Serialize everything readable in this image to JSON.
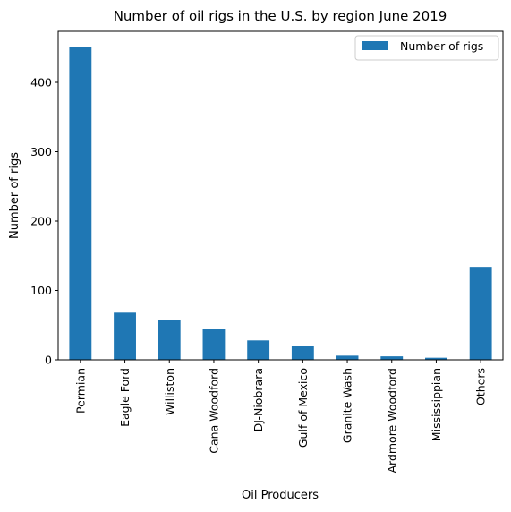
{
  "chart_data": {
    "type": "bar",
    "title": "Number of oil rigs in the U.S. by region June 2019",
    "xlabel": "Oil Producers",
    "ylabel": "Number of rigs",
    "categories": [
      "Permian",
      "Eagle Ford",
      "Williston",
      "Cana Woodford",
      "DJ-Niobrara",
      "Gulf of Mexico",
      "Granite Wash",
      "Ardmore Woodford",
      "Mississippian",
      "Others"
    ],
    "series": [
      {
        "name": "Number of rigs",
        "values": [
          451,
          68,
          57,
          45,
          28,
          20,
          6,
          5,
          3,
          134
        ],
        "color": "#1f77b4"
      }
    ],
    "ylim": [
      0,
      473.55
    ],
    "yticks": [
      0,
      100,
      200,
      300,
      400
    ],
    "grid": false,
    "legend_position": "top-right"
  }
}
